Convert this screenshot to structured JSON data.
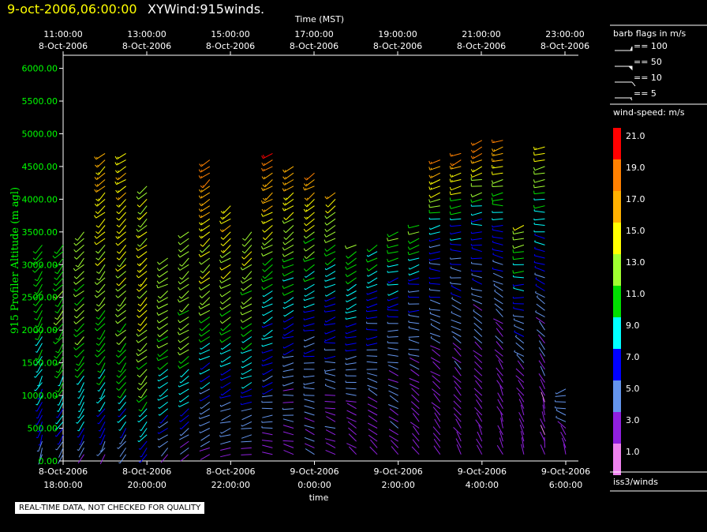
{
  "header": {
    "datetime": "9-oct-2006,06:00:00",
    "product": "XYWind:915winds."
  },
  "footer_note": "REAL-TIME DATA, NOT CHECKED FOR QUALITY",
  "source_label": "iss3/winds",
  "colors": {
    "background": "#000000",
    "axis": "#ffffff",
    "y_axis_text": "#00ff00",
    "title_date": "#ffff00"
  },
  "chart_data": {
    "type": "wind-barb-time-height",
    "top_axis": {
      "label": "Time (MST)",
      "ticks": [
        {
          "time": "11:00:00",
          "date": "8-Oct-2006"
        },
        {
          "time": "13:00:00",
          "date": "8-Oct-2006"
        },
        {
          "time": "15:00:00",
          "date": "8-Oct-2006"
        },
        {
          "time": "17:00:00",
          "date": "8-Oct-2006"
        },
        {
          "time": "19:00:00",
          "date": "8-Oct-2006"
        },
        {
          "time": "21:00:00",
          "date": "8-Oct-2006"
        },
        {
          "time": "23:00:00",
          "date": "8-Oct-2006"
        }
      ]
    },
    "bottom_axis": {
      "label": "time",
      "ticks": [
        {
          "date": "8-Oct-2006",
          "time": "18:00:00"
        },
        {
          "date": "8-Oct-2006",
          "time": "20:00:00"
        },
        {
          "date": "8-Oct-2006",
          "time": "22:00:00"
        },
        {
          "date": "9-Oct-2006",
          "time": "0:00:00"
        },
        {
          "date": "9-Oct-2006",
          "time": "2:00:00"
        },
        {
          "date": "9-Oct-2006",
          "time": "4:00:00"
        },
        {
          "date": "9-Oct-2006",
          "time": "6:00:00"
        }
      ]
    },
    "y_axis": {
      "label": "915 Profiler Altitude (m agl)",
      "min": 0,
      "max": 6200,
      "ticks": [
        "0.00",
        "500.00",
        "1000.00",
        "1500.00",
        "2000.00",
        "2500.00",
        "3000.00",
        "3500.00",
        "4000.00",
        "4500.00",
        "5000.00",
        "5500.00",
        "6000.00"
      ]
    },
    "barb_legend": {
      "title": "barb flags in m/s",
      "items": [
        "== 100",
        "== 50",
        "== 10",
        "== 5"
      ]
    },
    "speed_legend": {
      "title": "wind-speed: m/s",
      "bins": [
        {
          "label": "21.0",
          "color": "#ff0000"
        },
        {
          "label": "19.0",
          "color": "#ff8000"
        },
        {
          "label": "17.0",
          "color": "#ffb000"
        },
        {
          "label": "15.0",
          "color": "#ffff00"
        },
        {
          "label": "13.0",
          "color": "#a0ff30"
        },
        {
          "label": "11.0",
          "color": "#00e000"
        },
        {
          "label": "9.0",
          "color": "#00ffff"
        },
        {
          "label": "7.0",
          "color": "#0000ff"
        },
        {
          "label": "5.0",
          "color": "#6495ed"
        },
        {
          "label": "3.0",
          "color": "#9020e0"
        },
        {
          "label": "1.0",
          "color": "#ee82ee"
        }
      ]
    },
    "profiles": [
      {
        "time": "17:30",
        "tops": [
          3300
        ],
        "dir_deg": [
          200,
          205,
          210,
          215,
          220
        ],
        "speed_ms": [
          4,
          8,
          10,
          11,
          11
        ]
      },
      {
        "time": "18:00",
        "tops": [
          3300
        ],
        "dir_deg": [
          210,
          210,
          215,
          220,
          225
        ],
        "speed_ms": [
          4,
          9,
          11,
          12,
          12
        ]
      },
      {
        "time": "18:30",
        "tops": [
          3550
        ],
        "dir_deg": [
          210,
          215,
          220,
          225,
          225
        ],
        "speed_ms": [
          4,
          9,
          11,
          12,
          13
        ]
      },
      {
        "time": "19:00",
        "tops": [
          4700
        ],
        "dir_deg": [
          210,
          215,
          220,
          225,
          230
        ],
        "speed_ms": [
          4,
          10,
          12,
          14,
          17
        ]
      },
      {
        "time": "19:30",
        "tops": [
          4750
        ],
        "dir_deg": [
          215,
          220,
          225,
          230,
          235
        ],
        "speed_ms": [
          4,
          11,
          13,
          15,
          16
        ]
      },
      {
        "time": "20:00",
        "tops": [
          4250
        ],
        "dir_deg": [
          220,
          225,
          225,
          230,
          230
        ],
        "speed_ms": [
          5,
          12,
          14,
          15,
          14
        ]
      },
      {
        "time": "20:30",
        "tops": [
          3100
        ],
        "dir_deg": [
          230,
          230,
          235,
          235,
          240
        ],
        "speed_ms": [
          3,
          8,
          11,
          13,
          14
        ]
      },
      {
        "time": "21:00",
        "tops": [
          3500
        ],
        "dir_deg": [
          240,
          235,
          235,
          230,
          230
        ],
        "speed_ms": [
          3,
          8,
          12,
          13,
          13
        ]
      },
      {
        "time": "21:30",
        "tops": [
          4600
        ],
        "dir_deg": [
          250,
          240,
          235,
          230,
          230
        ],
        "speed_ms": [
          3,
          7,
          12,
          15,
          19
        ]
      },
      {
        "time": "22:00",
        "tops": [
          3950
        ],
        "dir_deg": [
          260,
          245,
          240,
          235,
          230
        ],
        "speed_ms": [
          3,
          6,
          11,
          14,
          16
        ]
      },
      {
        "time": "22:30",
        "tops": [
          3500
        ],
        "dir_deg": [
          270,
          250,
          240,
          235,
          230
        ],
        "speed_ms": [
          3,
          6,
          10,
          13,
          14
        ]
      },
      {
        "time": "23:00",
        "tops": [
          4700
        ],
        "dir_deg": [
          280,
          250,
          240,
          235,
          235
        ],
        "speed_ms": [
          3,
          6,
          9,
          14,
          20
        ]
      },
      {
        "time": "23:30",
        "tops": [
          4500
        ],
        "dir_deg": [
          290,
          260,
          245,
          235,
          235
        ],
        "speed_ms": [
          3,
          5,
          8,
          13,
          18
        ]
      },
      {
        "time": "0:00",
        "tops": [
          4400
        ],
        "dir_deg": [
          300,
          270,
          250,
          240,
          235
        ],
        "speed_ms": [
          3,
          5,
          7,
          12,
          19
        ]
      },
      {
        "time": "0:30",
        "tops": [
          4150
        ],
        "dir_deg": [
          300,
          280,
          255,
          240,
          235
        ],
        "speed_ms": [
          3,
          4,
          7,
          10,
          16
        ]
      },
      {
        "time": "1:00",
        "tops": [
          3300
        ],
        "dir_deg": [
          310,
          290,
          260,
          245,
          240
        ],
        "speed_ms": [
          3,
          4,
          6,
          9,
          12
        ]
      },
      {
        "time": "1:30",
        "tops": [
          3300
        ],
        "dir_deg": [
          310,
          300,
          270,
          250,
          240
        ],
        "speed_ms": [
          3,
          4,
          5,
          8,
          11
        ]
      },
      {
        "time": "2:00",
        "tops": [
          3500
        ],
        "dir_deg": [
          320,
          300,
          275,
          255,
          245
        ],
        "speed_ms": [
          3,
          4,
          5,
          8,
          12
        ]
      },
      {
        "time": "2:30",
        "tops": [
          3650
        ],
        "dir_deg": [
          320,
          310,
          280,
          260,
          245
        ],
        "speed_ms": [
          3,
          3,
          5,
          7,
          13
        ]
      },
      {
        "time": "3:00",
        "tops": [
          4600
        ],
        "dir_deg": [
          330,
          310,
          285,
          260,
          245
        ],
        "speed_ms": [
          3,
          3,
          5,
          7,
          19
        ]
      },
      {
        "time": "3:30",
        "tops": [
          4700
        ],
        "dir_deg": [
          330,
          320,
          290,
          265,
          245
        ],
        "speed_ms": [
          3,
          3,
          5,
          8,
          19
        ]
      },
      {
        "time": "4:00",
        "tops": [
          4900
        ],
        "dir_deg": [
          340,
          320,
          295,
          265,
          245
        ],
        "speed_ms": [
          3,
          3,
          5,
          8,
          20
        ]
      },
      {
        "time": "4:30",
        "tops": [
          4950
        ],
        "dir_deg": [
          340,
          330,
          300,
          270,
          245
        ],
        "speed_ms": [
          3,
          3,
          5,
          8,
          19
        ]
      },
      {
        "time": "5:00",
        "tops": [
          3600
        ],
        "dir_deg": [
          345,
          330,
          300,
          270,
          245
        ],
        "speed_ms": [
          2,
          3,
          5,
          8,
          15
        ]
      },
      {
        "time": "5:30",
        "tops": [
          4850
        ],
        "dir_deg": [
          350,
          335,
          305,
          275,
          245
        ],
        "speed_ms": [
          2,
          3,
          5,
          8,
          16
        ]
      },
      {
        "time": "6:00",
        "tops": [
          1100
        ],
        "dir_deg": [
          350,
          340,
          310,
          280,
          250
        ],
        "speed_ms": [
          2,
          3,
          4,
          5,
          6
        ]
      }
    ]
  }
}
